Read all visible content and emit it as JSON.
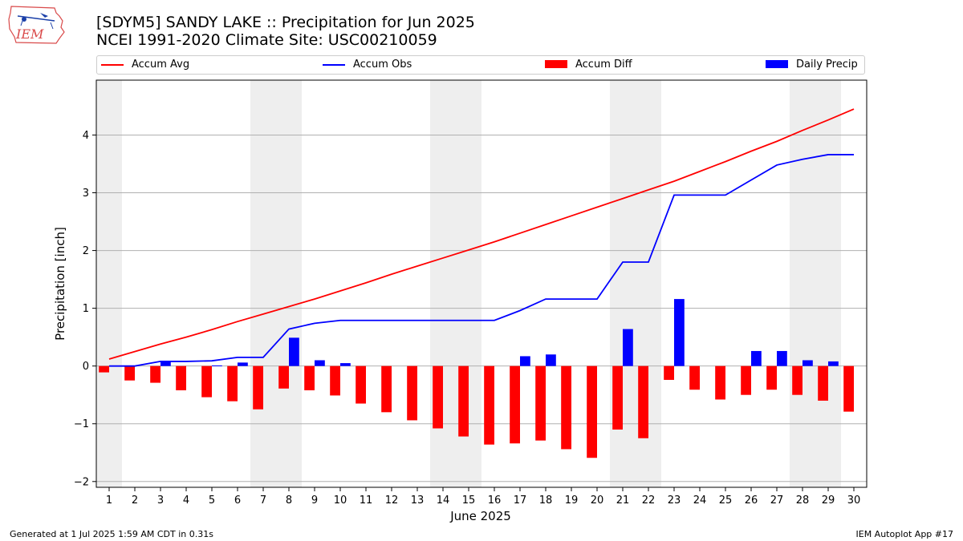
{
  "branding": {
    "logo_text": "IEM"
  },
  "header": {
    "title": "[SDYM5] SANDY LAKE :: Precipitation for Jun 2025",
    "subtitle": "NCEI 1991-2020 Climate Site: USC00210059"
  },
  "legend": {
    "items": [
      {
        "label": "Accum Avg",
        "kind": "line",
        "color": "#ff0000"
      },
      {
        "label": "Accum Obs",
        "kind": "line",
        "color": "#0000ff"
      },
      {
        "label": "Accum Diff",
        "kind": "bar",
        "color": "#ff0000"
      },
      {
        "label": "Daily Precip",
        "kind": "bar",
        "color": "#0000ff"
      }
    ]
  },
  "footer": {
    "left": "Generated at 1 Jul 2025 1:59 AM CDT in 0.31s",
    "right": "IEM Autoplot App #17"
  },
  "chart_data": {
    "type": "bar",
    "xlabel": "June 2025",
    "ylabel": "Precipitation [inch]",
    "ylim": [
      -2.1,
      4.95
    ],
    "yticks": [
      -2,
      -1,
      0,
      1,
      2,
      3,
      4
    ],
    "grid": "horizontal",
    "legend_position": "top",
    "weekend_shading": [
      [
        1,
        1
      ],
      [
        7,
        8
      ],
      [
        14,
        15
      ],
      [
        21,
        22
      ],
      [
        28,
        29
      ]
    ],
    "x": [
      1,
      2,
      3,
      4,
      5,
      6,
      7,
      8,
      9,
      10,
      11,
      12,
      13,
      14,
      15,
      16,
      17,
      18,
      19,
      20,
      21,
      22,
      23,
      24,
      25,
      26,
      27,
      28,
      29,
      30
    ],
    "series": [
      {
        "name": "Accum Avg",
        "kind": "line",
        "color": "#ff0000",
        "values": [
          0.12,
          0.25,
          0.38,
          0.5,
          0.63,
          0.77,
          0.9,
          1.03,
          1.16,
          1.3,
          1.44,
          1.59,
          1.73,
          1.87,
          2.01,
          2.15,
          2.3,
          2.45,
          2.6,
          2.75,
          2.9,
          3.05,
          3.2,
          3.37,
          3.54,
          3.72,
          3.89,
          4.08,
          4.26,
          4.45
        ]
      },
      {
        "name": "Accum Obs",
        "kind": "line",
        "color": "#0000ff",
        "values": [
          0.0,
          0.0,
          0.08,
          0.08,
          0.09,
          0.15,
          0.15,
          0.64,
          0.74,
          0.79,
          0.79,
          0.79,
          0.79,
          0.79,
          0.79,
          0.79,
          0.96,
          1.16,
          1.16,
          1.16,
          1.8,
          1.8,
          2.96,
          2.96,
          2.96,
          3.22,
          3.48,
          3.58,
          3.66,
          3.66
        ]
      },
      {
        "name": "Accum Diff",
        "kind": "bar",
        "color": "#ff0000",
        "values": [
          -0.11,
          -0.25,
          -0.29,
          -0.42,
          -0.54,
          -0.61,
          -0.75,
          -0.39,
          -0.42,
          -0.51,
          -0.65,
          -0.8,
          -0.94,
          -1.08,
          -1.22,
          -1.36,
          -1.34,
          -1.29,
          -1.44,
          -1.59,
          -1.1,
          -1.25,
          -0.24,
          -0.41,
          -0.58,
          -0.5,
          -0.41,
          -0.5,
          -0.6,
          -0.79
        ]
      },
      {
        "name": "Daily Precip",
        "kind": "bar",
        "color": "#0000ff",
        "values": [
          0.0,
          0.0,
          0.08,
          0.0,
          0.01,
          0.06,
          0.0,
          0.49,
          0.1,
          0.05,
          0.0,
          0.0,
          0.0,
          0.0,
          0.0,
          0.0,
          0.17,
          0.2,
          0.0,
          0.0,
          0.64,
          0.0,
          1.16,
          0.0,
          0.0,
          0.26,
          0.26,
          0.1,
          0.08,
          0.0
        ]
      }
    ]
  }
}
